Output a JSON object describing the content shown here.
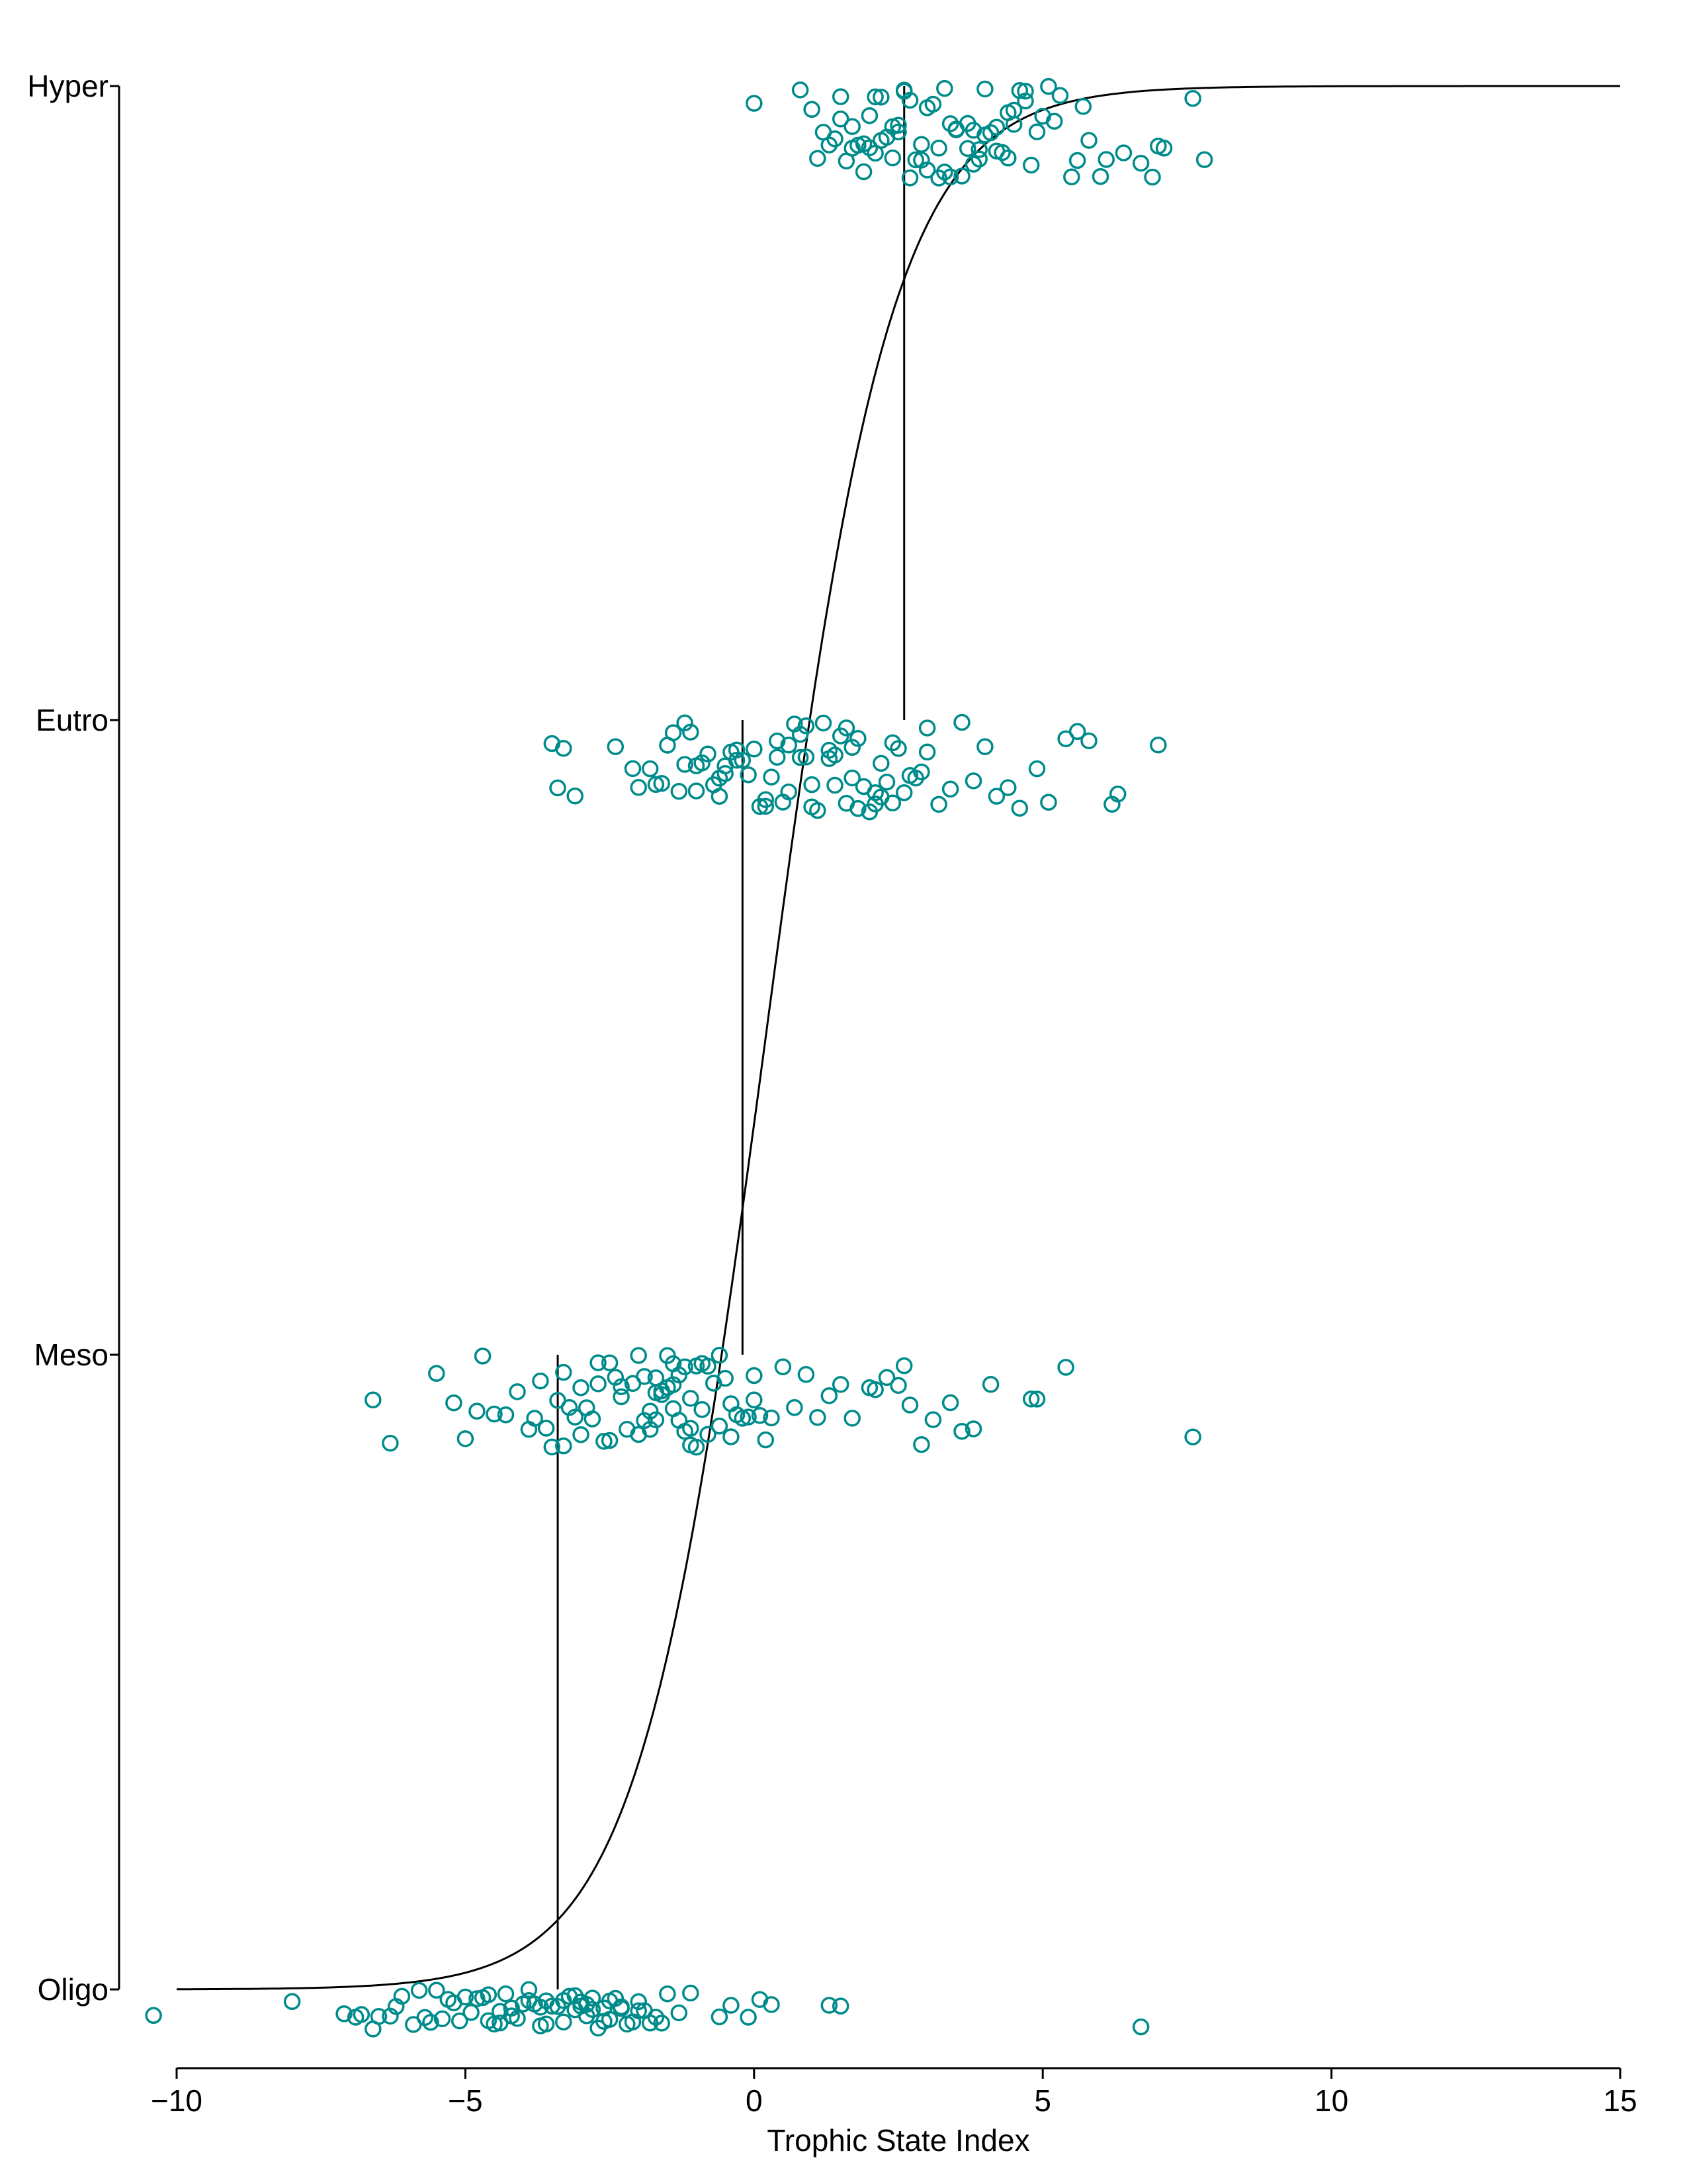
{
  "chart_data": {
    "type": "scatter",
    "xlabel": "Trophic State Index",
    "xlim": [
      -10,
      15
    ],
    "xticks": [
      -10,
      -5,
      0,
      5,
      10,
      15
    ],
    "xtick_labels": [
      "−10",
      "−5",
      "0",
      "5",
      "10",
      "15"
    ],
    "categories": [
      "Oligo",
      "Meso",
      "Eutro",
      "Hyper"
    ],
    "grid": false,
    "legend": "none",
    "colors": {
      "points": "#008B8B",
      "lines": "#000000"
    },
    "thresholds": [
      -3.4,
      -0.2,
      2.6
    ],
    "logistic_curve": {
      "description": "ordinal logistic cumulative curve",
      "midpoint": 0.2,
      "scale": 1.1
    },
    "jitter_band": 0.26,
    "points": {
      "Oligo": [
        -10.4,
        -8.0,
        -6.8,
        -6.6,
        -6.5,
        -6.3,
        -6.1,
        -5.9,
        -5.7,
        -5.6,
        -5.4,
        -5.2,
        -5.1,
        -5.0,
        -4.9,
        -4.8,
        -4.7,
        -4.6,
        -4.5,
        -4.4,
        -4.3,
        -4.2,
        -4.1,
        -4.0,
        -3.9,
        -3.8,
        -3.7,
        -3.6,
        -3.5,
        -3.4,
        -3.3,
        -3.2,
        -3.1,
        -3.0,
        -2.9,
        -2.8,
        -2.7,
        -2.6,
        -2.5,
        -2.4,
        -2.3,
        -2.2,
        -2.1,
        -2.0,
        -1.9,
        -1.8,
        -1.7,
        -1.5,
        -1.3,
        -1.1,
        -0.6,
        -0.4,
        -0.1,
        0.1,
        0.3,
        1.3,
        1.5,
        6.7,
        -6.2,
        -5.8,
        -5.3,
        -4.6,
        -4.2,
        -3.9,
        -3.6,
        -3.3,
        -3.0,
        -2.8,
        -2.6,
        -2.3,
        -2.0,
        -1.6,
        -7.1,
        -6.9,
        -5.5,
        -4.4,
        -3.7,
        -3.1,
        -2.9,
        -2.5
      ],
      "Meso": [
        -6.6,
        -6.3,
        -5.5,
        -5.2,
        -5.0,
        -4.8,
        -4.7,
        -4.5,
        -4.3,
        -4.1,
        -3.9,
        -3.8,
        -3.7,
        -3.6,
        -3.5,
        -3.4,
        -3.3,
        -3.2,
        -3.1,
        -3.0,
        -2.9,
        -2.8,
        -2.7,
        -2.6,
        -2.5,
        -2.4,
        -2.3,
        -2.2,
        -2.1,
        -2.0,
        -1.9,
        -1.8,
        -1.7,
        -1.6,
        -1.5,
        -1.4,
        -1.3,
        -1.2,
        -1.1,
        -1.0,
        -0.9,
        -0.8,
        -0.7,
        -0.6,
        -0.5,
        -0.4,
        -0.3,
        -0.2,
        -0.1,
        0.0,
        0.1,
        0.2,
        0.3,
        0.5,
        0.7,
        0.9,
        1.1,
        1.3,
        1.5,
        1.7,
        2.0,
        2.1,
        2.3,
        2.5,
        2.6,
        2.7,
        2.9,
        3.1,
        3.4,
        3.6,
        3.8,
        4.1,
        4.8,
        4.9,
        5.4,
        7.6,
        -2.3,
        -2.0,
        -1.8,
        -1.6,
        -1.4,
        -1.2,
        -1.0,
        -0.8,
        -0.6,
        -1.9,
        -1.7,
        -1.5,
        -1.3,
        -1.1,
        -2.5,
        -2.7,
        -0.9,
        -0.4,
        -3.0,
        -3.3,
        0.0,
        -1.7,
        -1.4,
        -1.1
      ],
      "Eutro": [
        -3.5,
        -3.4,
        -3.3,
        -3.1,
        -2.4,
        -2.1,
        -2.0,
        -1.8,
        -1.7,
        -1.6,
        -1.5,
        -1.4,
        -1.3,
        -1.2,
        -1.1,
        -1.0,
        -0.9,
        -0.8,
        -0.7,
        -0.6,
        -0.5,
        -0.4,
        -0.3,
        -0.2,
        -0.1,
        0.0,
        0.1,
        0.2,
        0.3,
        0.4,
        0.5,
        0.6,
        0.7,
        0.8,
        0.9,
        1.0,
        1.1,
        1.2,
        1.3,
        1.4,
        1.5,
        1.6,
        1.7,
        1.8,
        1.9,
        2.0,
        2.1,
        2.2,
        2.3,
        2.4,
        2.5,
        2.6,
        2.7,
        2.8,
        2.9,
        3.0,
        3.2,
        3.4,
        3.6,
        3.8,
        4.0,
        4.2,
        4.4,
        4.6,
        4.9,
        5.1,
        5.4,
        5.6,
        5.8,
        6.2,
        6.3,
        7.0,
        -0.3,
        0.2,
        0.6,
        1.0,
        1.4,
        1.8,
        2.2,
        -0.6,
        -1.0,
        0.4,
        0.8,
        1.6,
        2.4,
        3.0,
        -1.2,
        -0.5,
        0.9,
        1.3,
        1.7,
        2.1
      ],
      "Hyper": [
        0.0,
        0.8,
        1.0,
        1.1,
        1.2,
        1.3,
        1.4,
        1.5,
        1.6,
        1.7,
        1.8,
        1.9,
        2.0,
        2.1,
        2.2,
        2.3,
        2.4,
        2.5,
        2.6,
        2.7,
        2.8,
        2.9,
        3.0,
        3.1,
        3.2,
        3.3,
        3.4,
        3.5,
        3.6,
        3.7,
        3.8,
        3.9,
        4.0,
        4.1,
        4.2,
        4.3,
        4.4,
        4.5,
        4.6,
        4.7,
        4.8,
        4.9,
        5.0,
        5.1,
        5.3,
        5.5,
        5.6,
        5.8,
        6.0,
        6.1,
        6.4,
        6.7,
        6.9,
        7.0,
        7.1,
        7.6,
        7.8,
        1.5,
        2.0,
        2.5,
        3.0,
        3.5,
        4.0,
        1.7,
        2.2,
        2.7,
        3.2,
        3.7,
        4.2,
        4.7,
        1.9,
        2.4,
        2.9,
        3.4,
        3.9,
        4.4,
        5.2,
        5.7,
        2.1,
        2.6,
        3.3,
        3.8,
        4.5
      ]
    }
  }
}
